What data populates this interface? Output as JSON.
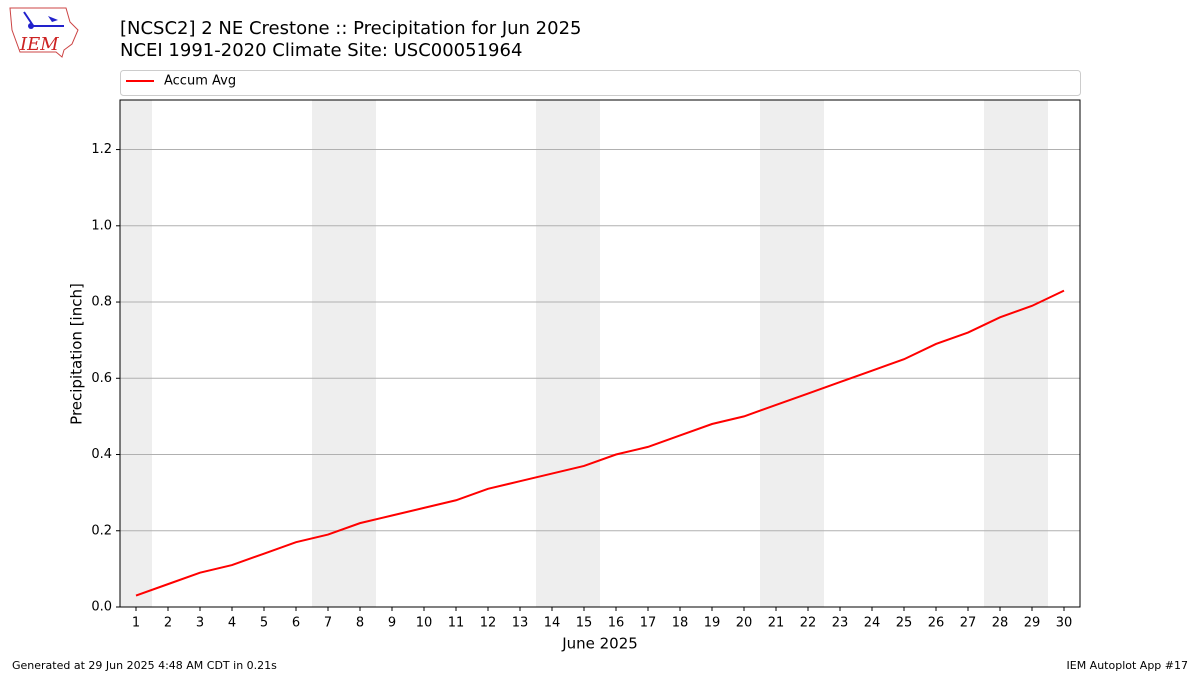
{
  "logo": "IEM",
  "footer": {
    "left": "Generated at 29 Jun 2025 4:48 AM CDT in 0.21s",
    "right": "IEM Autoplot App #17"
  },
  "chart_data": {
    "type": "line",
    "title": "[NCSC2] 2 NE Crestone :: Precipitation for Jun 2025",
    "subtitle": "NCEI 1991-2020 Climate Site: USC00051964",
    "x_label": "June 2025",
    "y_label": "Precipitation [inch]",
    "x": [
      1,
      2,
      3,
      4,
      5,
      6,
      7,
      8,
      9,
      10,
      11,
      12,
      13,
      14,
      15,
      16,
      17,
      18,
      19,
      20,
      21,
      22,
      23,
      24,
      25,
      26,
      27,
      28,
      29,
      30
    ],
    "series": [
      {
        "name": "Accum Avg",
        "color": "#ff0000",
        "values": [
          0.03,
          0.06,
          0.09,
          0.11,
          0.14,
          0.17,
          0.19,
          0.22,
          0.24,
          0.26,
          0.28,
          0.31,
          0.33,
          0.35,
          0.37,
          0.4,
          0.42,
          0.45,
          0.48,
          0.5,
          0.53,
          0.56,
          0.59,
          0.62,
          0.65,
          0.69,
          0.72,
          0.76,
          0.79,
          0.83
        ]
      }
    ],
    "shaded_bands": [
      [
        0.5,
        1.5
      ],
      [
        6.5,
        8.5
      ],
      [
        13.5,
        15.5
      ],
      [
        20.5,
        22.5
      ],
      [
        27.5,
        29.5
      ]
    ],
    "shade_color": "#eeeeee",
    "xlim": [
      0.5,
      30.5
    ],
    "xticks": [
      1,
      2,
      3,
      4,
      5,
      6,
      7,
      8,
      9,
      10,
      11,
      12,
      13,
      14,
      15,
      16,
      17,
      18,
      19,
      20,
      21,
      22,
      23,
      24,
      25,
      26,
      27,
      28,
      29,
      30
    ],
    "ylim": [
      0,
      1.33
    ],
    "yticks": [
      {
        "value": 0,
        "label": "0.0"
      },
      0.2,
      0.4,
      0.6,
      0.8,
      {
        "value": 1,
        "label": "1.0"
      },
      1.2
    ],
    "grid": "y",
    "legend": "top"
  }
}
